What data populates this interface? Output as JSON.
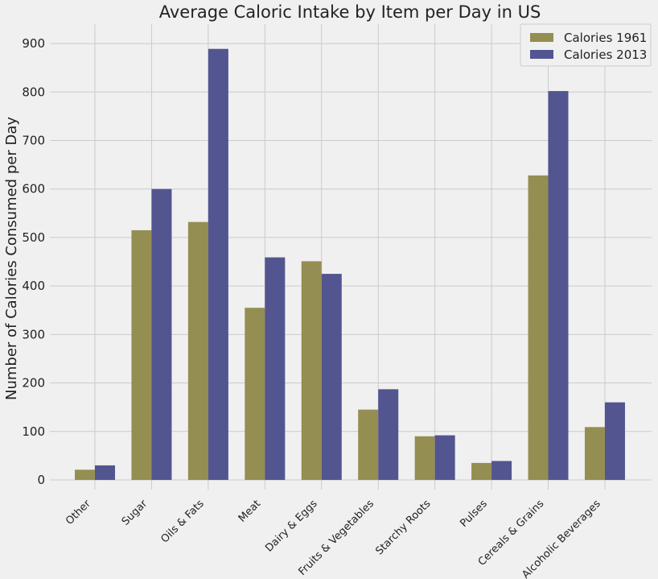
{
  "chart_data": {
    "type": "bar",
    "title": "Average Caloric Intake by Item per Day in US",
    "xlabel": "",
    "ylabel": "Number of Calories Consumed per Day",
    "categories": [
      "Other",
      "Sugar",
      "Oils & Fats",
      "Meat",
      "Dairy & Eggs",
      "Fruits & Vegetables",
      "Starchy Roots",
      "Pulses",
      "Cereals & Grains",
      "Alcoholic Beverages"
    ],
    "series": [
      {
        "name": "Calories 1961",
        "color": "#948e52",
        "values": [
          21,
          515,
          532,
          355,
          451,
          145,
          90,
          35,
          628,
          109
        ]
      },
      {
        "name": "Calories 2013",
        "color": "#535590",
        "values": [
          30,
          600,
          889,
          459,
          425,
          187,
          92,
          39,
          802,
          160
        ]
      }
    ],
    "ylim": [
      -20,
      940
    ],
    "yticks": [
      0,
      100,
      200,
      300,
      400,
      500,
      600,
      700,
      800,
      900
    ],
    "grid": true,
    "legend": "top-right",
    "colors": {
      "background": "#f0f0f0",
      "grid": "#cbcbcb"
    }
  }
}
